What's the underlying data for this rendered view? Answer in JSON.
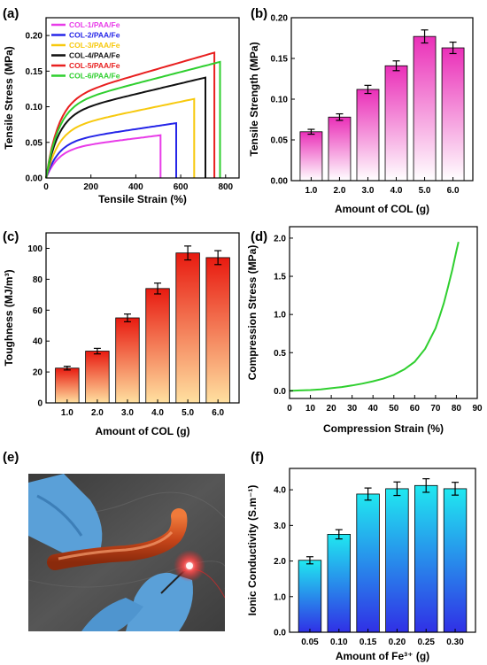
{
  "colors": {
    "magenta": "#e83ce8",
    "blue": "#2525e8",
    "yellow": "#f7c90e",
    "black": "#111111",
    "red": "#e81f1f",
    "green": "#2fcf2f"
  },
  "photo": {
    "label": "(e)",
    "description_icon": "photo-icon"
  },
  "chart_data": [
    {
      "id": "a",
      "label": "(a)",
      "type": "line",
      "xlabel": "Tensile Strain (%)",
      "ylabel": "Tensile Stress (MPa)",
      "xlim": [
        0,
        860
      ],
      "ylim": [
        0,
        0.225
      ],
      "xticks": [
        0,
        200,
        400,
        600,
        800
      ],
      "yticks": [
        0.0,
        0.05,
        0.1,
        0.15,
        0.2
      ],
      "ytick_labels": [
        "0.00",
        "0.05",
        "0.10",
        "0.15",
        "0.20"
      ],
      "legend": "top-left",
      "series": [
        {
          "name": "COL-1/PAA/Fe",
          "color": "#e83ce8",
          "end_strain": 510,
          "end_stress": 0.06,
          "knee": 0.04
        },
        {
          "name": "COL-2/PAA/Fe",
          "color": "#2525e8",
          "end_strain": 580,
          "end_stress": 0.077,
          "knee": 0.05
        },
        {
          "name": "COL-3/PAA/Fe",
          "color": "#f7c90e",
          "end_strain": 660,
          "end_stress": 0.111,
          "knee": 0.068
        },
        {
          "name": "COL-4/PAA/Fe",
          "color": "#111111",
          "end_strain": 710,
          "end_stress": 0.141,
          "knee": 0.088
        },
        {
          "name": "COL-5/PAA/Fe",
          "color": "#e81f1f",
          "end_strain": 750,
          "end_stress": 0.176,
          "knee": 0.108
        },
        {
          "name": "COL-6/PAA/Fe",
          "color": "#2fcf2f",
          "end_strain": 775,
          "end_stress": 0.163,
          "knee": 0.1
        }
      ]
    },
    {
      "id": "b",
      "label": "(b)",
      "type": "bar",
      "xlabel": "Amount of COL (g)",
      "ylabel": "Tensile Strength (MPa)",
      "categories": [
        "1.0",
        "2.0",
        "3.0",
        "4.0",
        "5.0",
        "6.0"
      ],
      "values": [
        0.06,
        0.078,
        0.112,
        0.141,
        0.177,
        0.163
      ],
      "errors": [
        0.003,
        0.004,
        0.005,
        0.006,
        0.008,
        0.007
      ],
      "ylim": [
        0,
        0.2
      ],
      "yticks": [
        0.0,
        0.05,
        0.1,
        0.15,
        0.2
      ],
      "ytick_labels": [
        "0.00",
        "0.05",
        "0.10",
        "0.15",
        "0.20"
      ],
      "gradient": [
        "#ffffff",
        "#ea2fb8"
      ]
    },
    {
      "id": "c",
      "label": "(c)",
      "type": "bar",
      "xlabel": "Amount of COL (g)",
      "ylabel": "Toughness (MJ/m³)",
      "categories": [
        "1.0",
        "2.0",
        "3.0",
        "4.0",
        "5.0",
        "6.0"
      ],
      "values": [
        22.5,
        33.5,
        55,
        74,
        97,
        94
      ],
      "errors": [
        1.2,
        1.8,
        2.5,
        3.5,
        4.5,
        4.5
      ],
      "ylim": [
        0,
        110
      ],
      "yticks": [
        0,
        20,
        40,
        60,
        80,
        100
      ],
      "ytick_labels": [
        "0",
        "20",
        "40",
        "60",
        "80",
        "100"
      ],
      "gradient": [
        "#ffe0a0",
        "#e81a10"
      ]
    },
    {
      "id": "d",
      "label": "(d)",
      "type": "line",
      "xlabel": "Compression Strain (%)",
      "ylabel": "Compression Stress (MPa)",
      "xlim": [
        0,
        90
      ],
      "ylim": [
        -0.1,
        2.15
      ],
      "xticks": [
        0,
        10,
        20,
        30,
        40,
        50,
        60,
        70,
        80,
        90
      ],
      "yticks": [
        0.0,
        0.5,
        1.0,
        1.5,
        2.0
      ],
      "ytick_labels": [
        "0.0",
        "0.5",
        "1.0",
        "1.5",
        "2.0"
      ],
      "series": [
        {
          "name": "",
          "color": "#2fcf2f",
          "x": [
            0,
            5,
            10,
            15,
            20,
            25,
            30,
            35,
            40,
            45,
            50,
            55,
            60,
            65,
            70,
            72,
            74,
            76,
            78,
            80,
            81
          ],
          "y": [
            0,
            0.005,
            0.01,
            0.02,
            0.035,
            0.05,
            0.07,
            0.095,
            0.125,
            0.16,
            0.21,
            0.28,
            0.38,
            0.55,
            0.82,
            0.98,
            1.15,
            1.36,
            1.58,
            1.83,
            1.95
          ]
        }
      ]
    },
    {
      "id": "f",
      "label": "(f)",
      "type": "bar",
      "xlabel": "Amount of Fe³⁺ (g)",
      "ylabel": "Ionic Conductivity (S.m⁻¹)",
      "categories": [
        "0.05",
        "0.10",
        "0.15",
        "0.20",
        "0.25",
        "0.30"
      ],
      "values": [
        2.02,
        2.75,
        3.88,
        4.03,
        4.12,
        4.03
      ],
      "errors": [
        0.1,
        0.13,
        0.17,
        0.19,
        0.19,
        0.18
      ],
      "ylim": [
        0,
        4.6
      ],
      "yticks": [
        0.0,
        1.0,
        2.0,
        3.0,
        4.0
      ],
      "ytick_labels": [
        "0.0",
        "1.0",
        "2.0",
        "3.0",
        "4.0"
      ],
      "gradient": [
        "#3030e6",
        "#20e8f0"
      ]
    }
  ]
}
